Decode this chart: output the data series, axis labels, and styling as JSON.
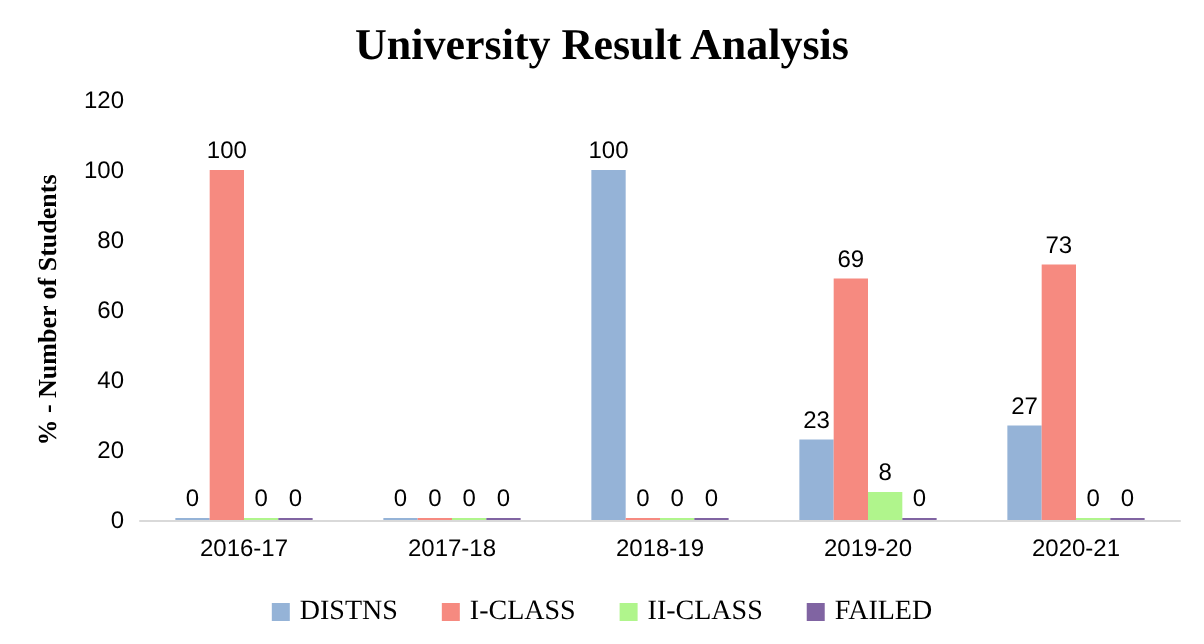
{
  "chart_data": {
    "type": "bar",
    "title": "University Result Analysis",
    "ylabel": "% - Number of Students",
    "categories": [
      "2016-17",
      "2017-18",
      "2018-19",
      "2019-20",
      "2020-21"
    ],
    "series": [
      {
        "name": "DISTNS",
        "color": "#95b3d7",
        "values": [
          0,
          0,
          100,
          23,
          27
        ]
      },
      {
        "name": "I-CLASS",
        "color": "#f68a80",
        "values": [
          100,
          0,
          0,
          69,
          73
        ]
      },
      {
        "name": "II-CLASS",
        "color": "#b0f58c",
        "values": [
          0,
          0,
          0,
          8,
          0
        ]
      },
      {
        "name": "FAILED",
        "color": "#8064a2",
        "values": [
          0,
          0,
          0,
          0,
          0
        ]
      }
    ],
    "ylim": [
      0,
      120
    ],
    "yticks": [
      0,
      20,
      40,
      60,
      80,
      100,
      120
    ],
    "grid": false,
    "legend": "bottom",
    "data_labels": true
  }
}
